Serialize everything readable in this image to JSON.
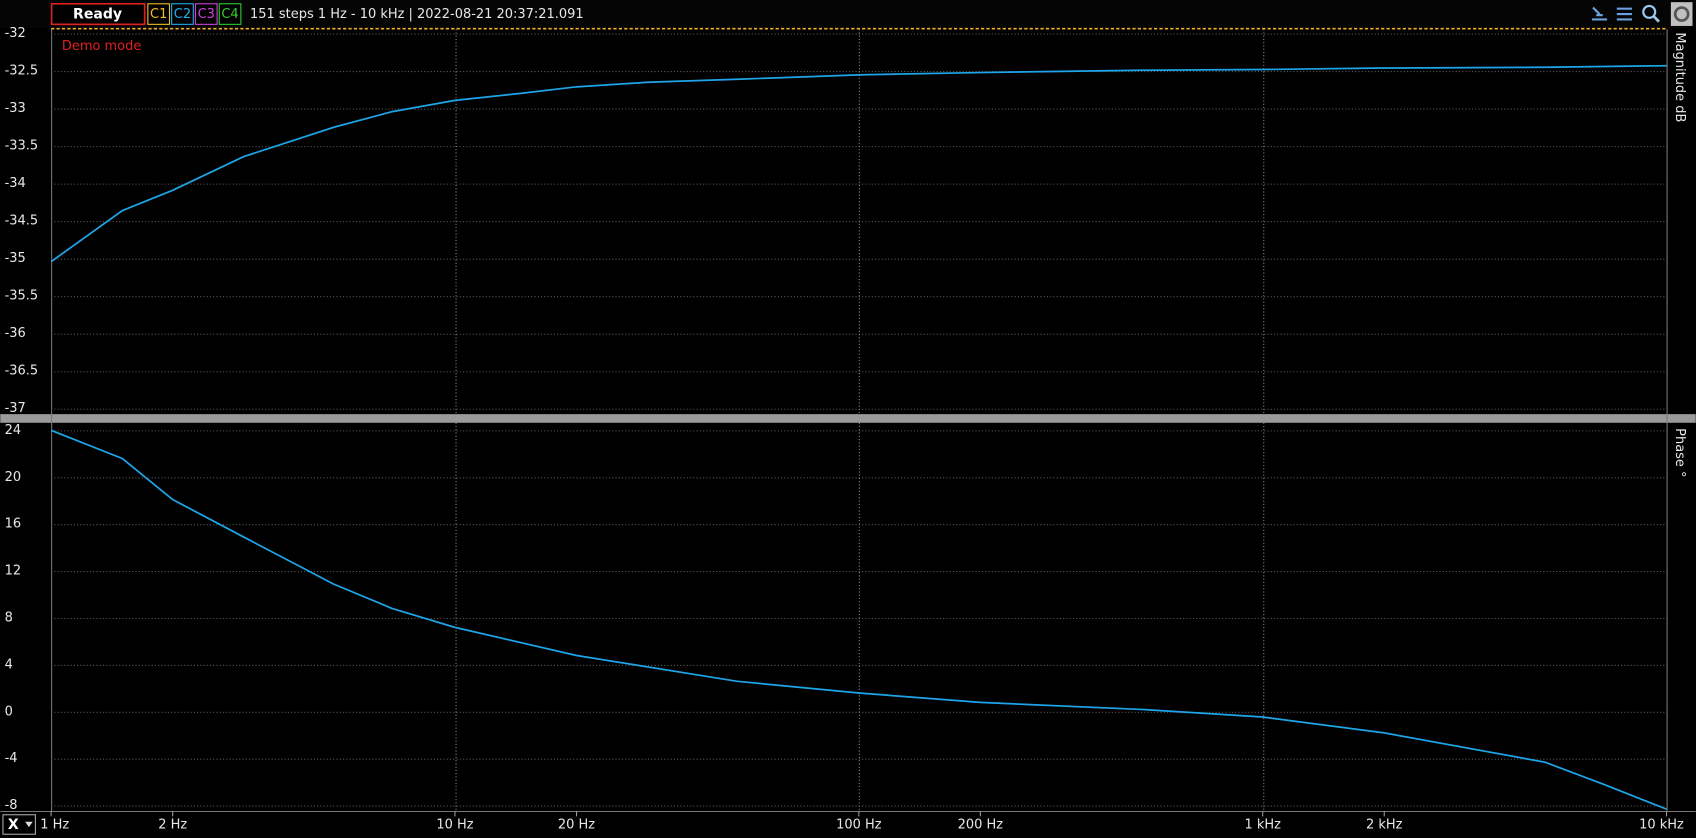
{
  "toolbar": {
    "status": "Ready",
    "channels": [
      "C1",
      "C2",
      "C3",
      "C4"
    ],
    "info": "151 steps  1 Hz - 10 kHz | 2022-08-21 20:37:21.091",
    "x_selector": "X"
  },
  "chart_data": [
    {
      "type": "line",
      "annotation": "Demo mode",
      "ylabel": "Magnitude  dB",
      "log_x": true,
      "grid": true,
      "xlim": [
        1,
        10000
      ],
      "ylim": [
        -37,
        -32
      ],
      "yticks": [
        -32,
        -32.5,
        -33,
        -33.5,
        -34,
        -34.5,
        -35,
        -35.5,
        -36,
        -36.5,
        -37
      ],
      "x": [
        1,
        1.5,
        2,
        3,
        5,
        7,
        10,
        15,
        20,
        30,
        50,
        100,
        200,
        500,
        1000,
        2000,
        5000,
        10000
      ],
      "series": [
        {
          "color": "#1ea5e8",
          "values": [
            -35.04,
            -34.36,
            -34.09,
            -33.64,
            -33.25,
            -33.04,
            -32.89,
            -32.79,
            -32.71,
            -32.65,
            -32.61,
            -32.55,
            -32.52,
            -32.49,
            -32.48,
            -32.46,
            -32.45,
            -32.43
          ]
        }
      ]
    },
    {
      "type": "line",
      "ylabel": "Phase  °",
      "log_x": true,
      "grid": true,
      "xlim": [
        1,
        10000
      ],
      "ylim": [
        -8,
        24
      ],
      "yticks": [
        24,
        20,
        16,
        12,
        8,
        4,
        0,
        -4,
        -8
      ],
      "xticks": [
        {
          "value": 1,
          "label": "1 Hz"
        },
        {
          "value": 2,
          "label": "2 Hz"
        },
        {
          "value": 10,
          "label": "10 Hz"
        },
        {
          "value": 20,
          "label": "20 Hz"
        },
        {
          "value": 100,
          "label": "100 Hz"
        },
        {
          "value": 200,
          "label": "200 Hz"
        },
        {
          "value": 1000,
          "label": "1 kHz"
        },
        {
          "value": 2000,
          "label": "2 kHz"
        },
        {
          "value": 10000,
          "label": "10 kHz"
        }
      ],
      "x": [
        1,
        1.5,
        2,
        3,
        5,
        7,
        10,
        20,
        50,
        100,
        200,
        500,
        1000,
        2000,
        5000,
        7000,
        10000
      ],
      "series": [
        {
          "color": "#1ea5e8",
          "values": [
            24,
            21.6,
            18.1,
            14.9,
            10.9,
            8.8,
            7.2,
            4.8,
            2.6,
            1.6,
            0.8,
            0.2,
            -0.45,
            -1.8,
            -4.3,
            -6.2,
            -8.3
          ]
        }
      ]
    }
  ]
}
